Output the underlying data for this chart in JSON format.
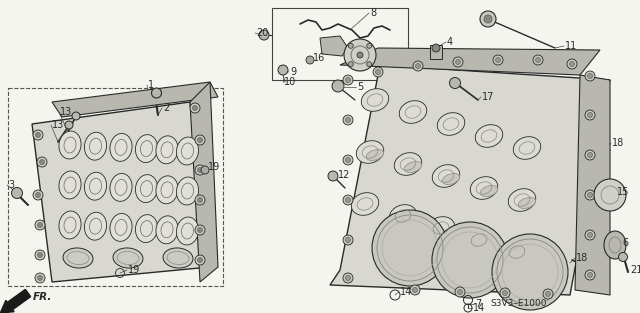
{
  "background_color": "#f5f5f0",
  "diagram_code": "S3V3–E1000",
  "figsize": [
    6.4,
    3.13
  ],
  "dpi": 100,
  "line_color": "#2a2a2a",
  "fill_light": "#d8d8d0",
  "fill_mid": "#b8b8b0",
  "fill_dark": "#888880",
  "label_fs": 7.0,
  "code_fs": 6.5
}
